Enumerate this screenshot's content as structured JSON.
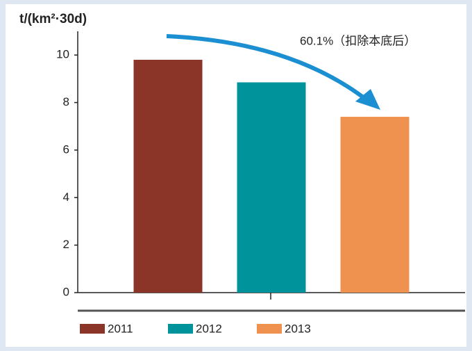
{
  "chart_data": {
    "type": "bar",
    "ylabel": "t/(km²·30d)",
    "annotation": "60.1%（扣除本底后）",
    "series": [
      {
        "name": "2011",
        "color": "#8b3428",
        "values": [
          9.8
        ]
      },
      {
        "name": "2012",
        "color": "#00939c",
        "values": [
          8.85
        ]
      },
      {
        "name": "2013",
        "color": "#f0924f",
        "values": [
          7.4
        ]
      }
    ],
    "ylim": [
      0,
      11
    ],
    "yticks": [
      0,
      2,
      4,
      6,
      8,
      10
    ],
    "grid": false,
    "legend": "bottom"
  }
}
